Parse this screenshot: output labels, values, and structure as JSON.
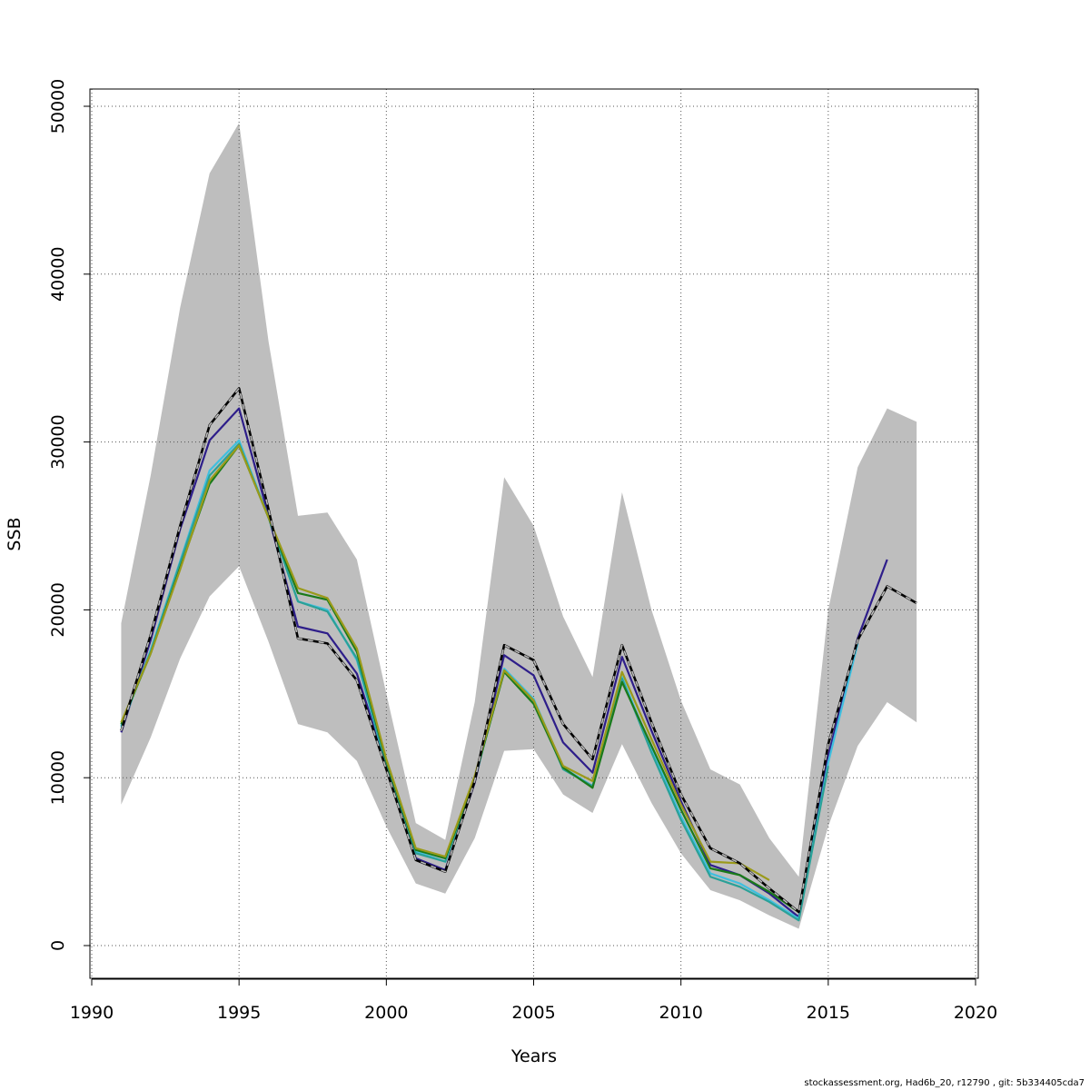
{
  "chart_data": {
    "type": "line",
    "xlabel": "Years",
    "ylabel": "SSB",
    "xlim": [
      1990,
      2020
    ],
    "ylim": [
      0,
      50000
    ],
    "x_ticks": [
      1990,
      1995,
      2000,
      2005,
      2010,
      2015,
      2020
    ],
    "y_ticks": [
      0,
      10000,
      20000,
      30000,
      40000,
      50000
    ],
    "grid": true,
    "band": {
      "color": "#bebebe",
      "x": [
        1991,
        1992,
        1993,
        1994,
        1995,
        1996,
        1997,
        1998,
        1999,
        2000,
        2001,
        2002,
        2003,
        2004,
        2005,
        2006,
        2007,
        2008,
        2009,
        2010,
        2011,
        2012,
        2013,
        2014,
        2015,
        2016,
        2017,
        2018
      ],
      "upper": [
        19200,
        28000,
        38000,
        46000,
        49000,
        36000,
        25600,
        25800,
        23000,
        15000,
        7300,
        6300,
        14500,
        27900,
        25000,
        19600,
        16000,
        27000,
        20000,
        14600,
        10500,
        9600,
        6400,
        4100,
        20000,
        28500,
        32000,
        31200
      ],
      "lower": [
        8400,
        12400,
        17100,
        20800,
        22600,
        18100,
        13200,
        12700,
        11000,
        7100,
        3700,
        3100,
        6400,
        11600,
        11700,
        9000,
        7900,
        12000,
        8500,
        5500,
        3300,
        2700,
        1800,
        1000,
        7100,
        11900,
        14500,
        13300
      ]
    },
    "series": [
      {
        "color": "#222222",
        "dashed": true,
        "x": [
          1991,
          1992,
          1993,
          1994,
          1995,
          1996,
          1997,
          1998,
          1999,
          2000,
          2001,
          2002,
          2003,
          2004,
          2005,
          2006,
          2007,
          2008,
          2009,
          2010,
          2011,
          2012,
          2013,
          2014,
          2015,
          2016,
          2017,
          2018
        ],
        "values": [
          12800,
          18500,
          25000,
          31000,
          33200,
          26000,
          18300,
          18000,
          15800,
          10500,
          5100,
          4400,
          9800,
          17900,
          17000,
          13200,
          11100,
          17900,
          13300,
          9000,
          5800,
          4900,
          3400,
          2000,
          12000,
          18200,
          21400,
          20400
        ]
      },
      {
        "color": "#2e1e8a",
        "x": [
          1991,
          1992,
          1993,
          1994,
          1995,
          1996,
          1997,
          1998,
          1999,
          2000,
          2001,
          2002,
          2003,
          2004,
          2005,
          2006,
          2007,
          2008,
          2009,
          2010,
          2011,
          2012,
          2013,
          2014,
          2015,
          2016,
          2017
        ],
        "values": [
          12700,
          18200,
          24800,
          30100,
          32000,
          25600,
          19000,
          18600,
          16200,
          10700,
          5200,
          4500,
          9700,
          17300,
          16100,
          12100,
          10300,
          17200,
          12800,
          8600,
          4800,
          4200,
          3100,
          1700,
          11300,
          18300,
          23000
        ]
      },
      {
        "color": "#3fbfdf",
        "x": [
          1991,
          1992,
          1993,
          1994,
          1995,
          1996,
          1997,
          1998,
          1999,
          2000,
          2001,
          2002,
          2003,
          2004,
          2005,
          2006,
          2007,
          2008,
          2009,
          2010,
          2011,
          2012,
          2013,
          2014,
          2015,
          2016
        ],
        "values": [
          13000,
          17600,
          22900,
          28300,
          30100,
          25500,
          20500,
          20000,
          17000,
          10700,
          5600,
          5000,
          9900,
          16500,
          14700,
          10600,
          9500,
          16000,
          11700,
          7700,
          4300,
          3700,
          2700,
          1600,
          10900,
          18000
        ]
      },
      {
        "color": "#2aa198",
        "x": [
          1991,
          1992,
          1993,
          1994,
          1995,
          1996,
          1997,
          1998,
          1999,
          2000,
          2001,
          2002,
          2003,
          2004,
          2005,
          2006,
          2007,
          2008,
          2009,
          2010,
          2011,
          2012,
          2013,
          2014,
          2015
        ],
        "values": [
          13100,
          17500,
          22800,
          28000,
          29900,
          25500,
          20500,
          19900,
          17100,
          10800,
          5500,
          5000,
          9900,
          16400,
          14600,
          10500,
          9500,
          15900,
          11500,
          7500,
          4100,
          3500,
          2600,
          1500,
          10700
        ]
      },
      {
        "color": "#1a7a1a",
        "x": [
          1991,
          1992,
          1993,
          1994,
          1995,
          1996,
          1997,
          1998,
          1999,
          2000,
          2001,
          2002,
          2003,
          2004,
          2005,
          2006,
          2007,
          2008,
          2009,
          2010,
          2011,
          2012,
          2013,
          2014
        ],
        "values": [
          13200,
          17400,
          22500,
          27500,
          29800,
          25500,
          21000,
          20600,
          17500,
          11000,
          5700,
          5200,
          10000,
          16300,
          14400,
          10600,
          9400,
          15700,
          11900,
          8100,
          4600,
          4200,
          3200,
          2000
        ]
      },
      {
        "color": "#9a9a1a",
        "x": [
          1991,
          1992,
          1993,
          1994,
          1995,
          1996,
          1997,
          1998,
          1999,
          2000,
          2001,
          2002,
          2003,
          2004,
          2005,
          2006,
          2007,
          2008,
          2009,
          2010,
          2011,
          2012,
          2013
        ],
        "values": [
          13300,
          17400,
          22400,
          27700,
          29800,
          25500,
          21300,
          20700,
          17700,
          11100,
          5800,
          5300,
          10100,
          16400,
          14600,
          10700,
          9800,
          16300,
          12300,
          8400,
          5000,
          4900,
          3900
        ]
      }
    ]
  },
  "footer": "stockassessment.org, Had6b_20, r12790 , git: 5b334405cda7"
}
